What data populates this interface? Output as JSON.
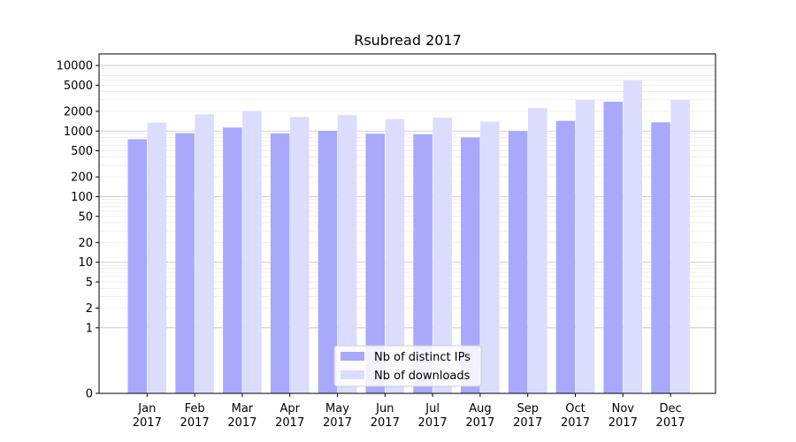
{
  "chart_data": {
    "type": "bar",
    "title": "Rsubread 2017",
    "xlabel": "",
    "ylabel": "",
    "yscale": "symlog",
    "ylim": [
      0,
      15000
    ],
    "yticks": [
      0,
      1,
      2,
      5,
      10,
      20,
      50,
      100,
      200,
      500,
      1000,
      2000,
      5000,
      10000
    ],
    "grid": true,
    "legend_position": "bottom-center",
    "categories": [
      "Jan\n2017",
      "Feb\n2017",
      "Mar\n2017",
      "Apr\n2017",
      "May\n2017",
      "Jun\n2017",
      "Jul\n2017",
      "Aug\n2017",
      "Sep\n2017",
      "Oct\n2017",
      "Nov\n2017",
      "Dec\n2017"
    ],
    "series": [
      {
        "name": "Nb of distinct IPs",
        "color": "#a8a8fd",
        "values": [
          750,
          930,
          1130,
          920,
          1010,
          910,
          890,
          800,
          990,
          1430,
          2800,
          1360
        ]
      },
      {
        "name": "Nb of downloads",
        "color": "#dcdcfe",
        "values": [
          1340,
          1800,
          2030,
          1640,
          1750,
          1520,
          1600,
          1390,
          2240,
          3000,
          5950,
          3000
        ]
      }
    ]
  }
}
